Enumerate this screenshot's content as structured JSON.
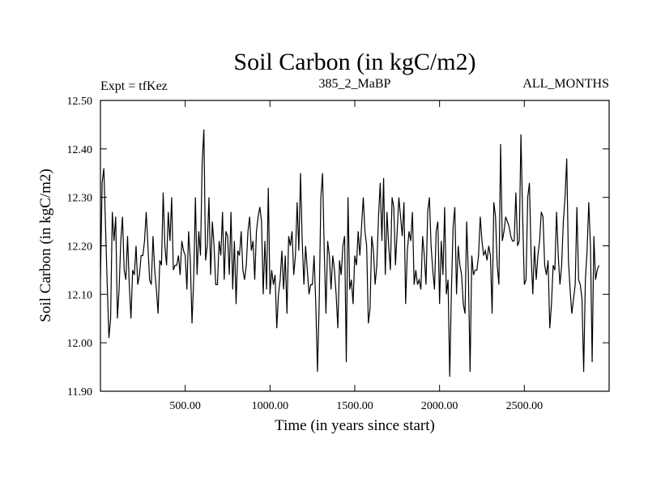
{
  "header": {
    "experiment": "Expt = tfKez",
    "period": "385_2_MaBP",
    "months": "ALL_MONTHS"
  },
  "chart_data": {
    "type": "line",
    "title": "Soil Carbon (in kgC/m2)",
    "xlabel": "Time (in years since start)",
    "ylabel": "Soil Carbon (in kgC/m2)",
    "xlim": [
      0,
      3000
    ],
    "ylim": [
      11.9,
      12.5
    ],
    "x_ticks": [
      500,
      1000,
      1500,
      2000,
      2500
    ],
    "x_tick_labels": [
      "500.00",
      "1000.00",
      "1500.00",
      "2000.00",
      "2500.00"
    ],
    "y_ticks": [
      11.9,
      12.0,
      12.1,
      12.2,
      12.3,
      12.4,
      12.5
    ],
    "y_tick_labels": [
      "11.90",
      "12.00",
      "12.10",
      "12.20",
      "12.30",
      "12.40",
      "12.50"
    ],
    "grid": false,
    "line_color": "#000000",
    "series": [
      {
        "x_start": 0,
        "x_step": 10,
        "values": [
          12.13,
          12.33,
          12.36,
          12.24,
          12.12,
          12.01,
          12.05,
          12.27,
          12.21,
          12.26,
          12.05,
          12.11,
          12.21,
          12.26,
          12.15,
          12.13,
          12.22,
          12.12,
          12.05,
          12.15,
          12.14,
          12.2,
          12.12,
          12.14,
          12.18,
          12.18,
          12.21,
          12.27,
          12.2,
          12.13,
          12.12,
          12.22,
          12.15,
          12.11,
          12.06,
          12.17,
          12.16,
          12.31,
          12.2,
          12.16,
          12.27,
          12.21,
          12.3,
          12.15,
          12.16,
          12.16,
          12.18,
          12.14,
          12.21,
          12.19,
          12.18,
          12.11,
          12.23,
          12.17,
          12.04,
          12.13,
          12.3,
          12.14,
          12.23,
          12.18,
          12.37,
          12.44,
          12.17,
          12.2,
          12.3,
          12.14,
          12.25,
          12.2,
          12.12,
          12.12,
          12.21,
          12.18,
          12.27,
          12.13,
          12.23,
          12.22,
          12.14,
          12.27,
          12.11,
          12.21,
          12.08,
          12.19,
          12.18,
          12.23,
          12.15,
          12.13,
          12.16,
          12.23,
          12.26,
          12.19,
          12.21,
          12.13,
          12.23,
          12.26,
          12.28,
          12.25,
          12.1,
          12.21,
          12.11,
          12.32,
          12.1,
          12.15,
          12.12,
          12.14,
          12.03,
          12.1,
          12.13,
          12.19,
          12.11,
          12.18,
          12.06,
          12.22,
          12.2,
          12.23,
          12.14,
          12.18,
          12.29,
          12.19,
          12.35,
          12.21,
          12.12,
          12.2,
          12.15,
          12.1,
          12.12,
          12.12,
          12.18,
          12.08,
          11.94,
          12.08,
          12.3,
          12.35,
          12.19,
          12.06,
          12.21,
          12.18,
          12.11,
          12.18,
          12.15,
          12.1,
          12.03,
          12.17,
          12.14,
          12.2,
          12.22,
          11.96,
          12.3,
          12.11,
          12.13,
          12.08,
          12.18,
          12.16,
          12.23,
          12.18,
          12.24,
          12.3,
          12.23,
          12.2,
          12.04,
          12.07,
          12.22,
          12.19,
          12.12,
          12.16,
          12.26,
          12.33,
          12.21,
          12.34,
          12.14,
          12.27,
          12.2,
          12.15,
          12.3,
          12.28,
          12.16,
          12.23,
          12.3,
          12.26,
          12.22,
          12.29,
          12.08,
          12.19,
          12.23,
          12.21,
          12.27,
          12.12,
          12.15,
          12.12,
          12.13,
          12.11,
          12.22,
          12.18,
          12.12,
          12.27,
          12.3,
          12.2,
          12.15,
          12.11,
          12.23,
          12.25,
          12.08,
          12.21,
          12.14,
          12.28,
          12.1,
          12.13,
          11.93,
          12.11,
          12.24,
          12.28,
          12.1,
          12.2,
          12.16,
          12.14,
          12.08,
          12.06,
          12.25,
          12.14,
          11.94,
          12.18,
          12.14,
          12.15,
          12.15,
          12.18,
          12.26,
          12.21,
          12.18,
          12.19,
          12.17,
          12.2,
          12.18,
          12.06,
          12.29,
          12.26,
          12.16,
          12.12,
          12.41,
          12.21,
          12.23,
          12.26,
          12.25,
          12.24,
          12.22,
          12.21,
          12.21,
          12.31,
          12.2,
          12.21,
          12.43,
          12.26,
          12.12,
          12.13,
          12.3,
          12.33,
          12.18,
          12.1,
          12.2,
          12.13,
          12.18,
          12.21,
          12.27,
          12.26,
          12.16,
          12.14,
          12.17,
          12.03,
          12.08,
          12.16,
          12.15,
          12.27,
          12.18,
          12.12,
          12.16,
          12.25,
          12.3,
          12.38,
          12.17,
          12.11,
          12.06,
          12.09,
          12.12,
          12.28,
          12.13,
          12.12,
          12.09,
          11.94,
          12.13,
          12.19,
          12.29,
          12.2,
          11.96,
          12.22,
          12.13,
          12.15,
          12.16
        ]
      }
    ]
  }
}
